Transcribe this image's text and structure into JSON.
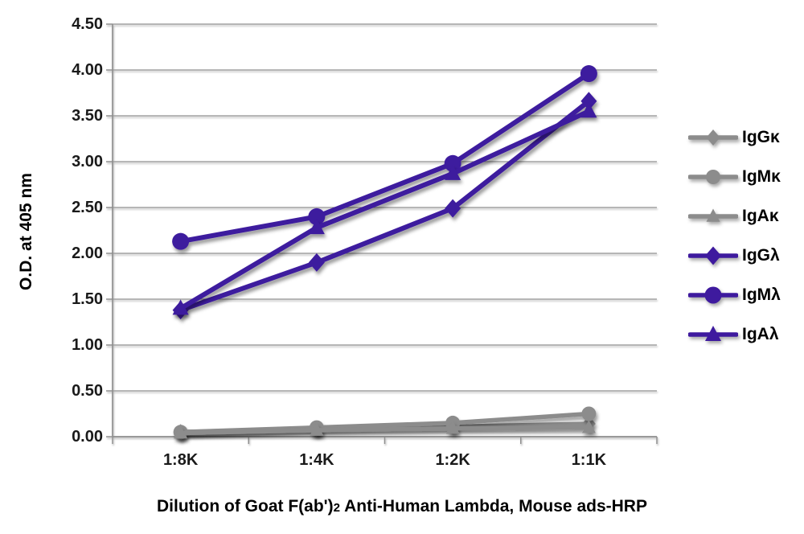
{
  "figure": {
    "y_axis_title": "O.D. at 405 nm",
    "x_axis_title_pre": "Dilution of Goat F(ab')",
    "x_axis_title_sub": "2",
    "x_axis_title_post": " Anti-Human Lambda, Mouse ads-HRP"
  },
  "chart_data": {
    "type": "line",
    "title": "",
    "xlabel": "Dilution of Goat F(ab')2 Anti-Human Lambda, Mouse ads-HRP",
    "ylabel": "O.D. at 405 nm",
    "categories": [
      "1:8K",
      "1:4K",
      "1:2K",
      "1:1K"
    ],
    "y_ticks": [
      "4.50",
      "4.00",
      "3.50",
      "3.00",
      "2.50",
      "2.00",
      "1.50",
      "1.00",
      "0.50",
      "0.00"
    ],
    "ylim": [
      0.0,
      4.5
    ],
    "y_step": 0.5,
    "grid": "horizontal",
    "legend_position": "right",
    "colors": {
      "kappa_gray": "#8c8c8c",
      "lambda_purple": "#3e1a9e",
      "axis_gray": "#8f8f8f",
      "text_black": "#1a1a1a"
    },
    "series": [
      {
        "name": "IgGκ",
        "marker": "diamond",
        "color": "#8c8c8c",
        "values": [
          0.05,
          0.09,
          0.11,
          0.14
        ]
      },
      {
        "name": "IgMκ",
        "marker": "circle",
        "color": "#8c8c8c",
        "values": [
          0.05,
          0.1,
          0.15,
          0.25
        ]
      },
      {
        "name": "IgAκ",
        "marker": "triangle",
        "color": "#8c8c8c",
        "values": [
          0.04,
          0.07,
          0.09,
          0.1
        ]
      },
      {
        "name": "IgGλ",
        "marker": "diamond",
        "color": "#3e1a9e",
        "values": [
          1.38,
          1.9,
          2.49,
          3.66
        ]
      },
      {
        "name": "IgMλ",
        "marker": "circle",
        "color": "#3e1a9e",
        "values": [
          2.13,
          2.4,
          2.98,
          3.96
        ]
      },
      {
        "name": "IgAλ",
        "marker": "triangle",
        "color": "#3e1a9e",
        "values": [
          1.4,
          2.28,
          2.87,
          3.55
        ]
      }
    ]
  }
}
